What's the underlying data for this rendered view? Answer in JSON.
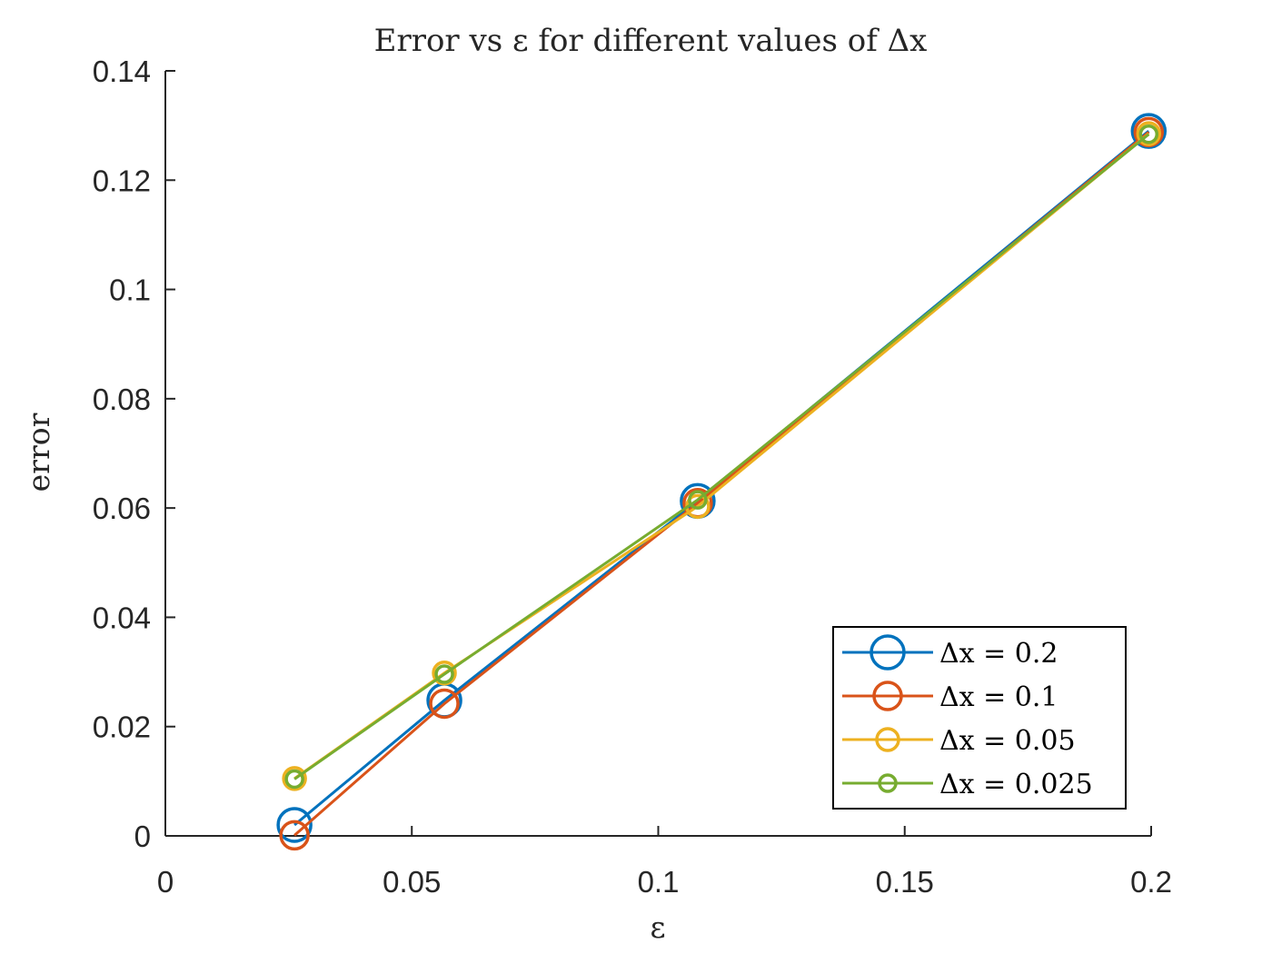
{
  "chart_data": {
    "type": "line",
    "title": "Error vs ε for different values of Δx",
    "xlabel": "ε",
    "ylabel": "error",
    "xlim": [
      0,
      0.2
    ],
    "ylim": [
      0,
      0.14
    ],
    "xticks": [
      0,
      0.05,
      0.1,
      0.15,
      0.2
    ],
    "xtick_labels": [
      "0",
      "0.05",
      "0.1",
      "0.15",
      "0.2"
    ],
    "yticks": [
      0,
      0.02,
      0.04,
      0.06,
      0.08,
      0.1,
      0.12,
      0.14
    ],
    "ytick_labels": [
      "0",
      "0.02",
      "0.04",
      "0.06",
      "0.08",
      "0.1",
      "0.12",
      "0.14"
    ],
    "grid": false,
    "legend_position": "bottom-right",
    "x": [
      0.0262,
      0.0566,
      0.108,
      0.1995
    ],
    "series": [
      {
        "name": "Δx = 0.2",
        "color": "#0072BD",
        "marker": "circle-large",
        "values": [
          0.002,
          0.0248,
          0.0613,
          0.129
        ]
      },
      {
        "name": "Δx = 0.1",
        "color": "#D95319",
        "marker": "circle-medium",
        "values": [
          0.0001,
          0.0242,
          0.0609,
          0.1288
        ]
      },
      {
        "name": "Δx = 0.05",
        "color": "#EDB120",
        "marker": "circle-small",
        "values": [
          0.0105,
          0.0298,
          0.0603,
          0.1285
        ]
      },
      {
        "name": "Δx = 0.025",
        "color": "#77AC30",
        "marker": "circle-tiny",
        "values": [
          0.0104,
          0.0296,
          0.0615,
          0.1284
        ]
      }
    ]
  }
}
